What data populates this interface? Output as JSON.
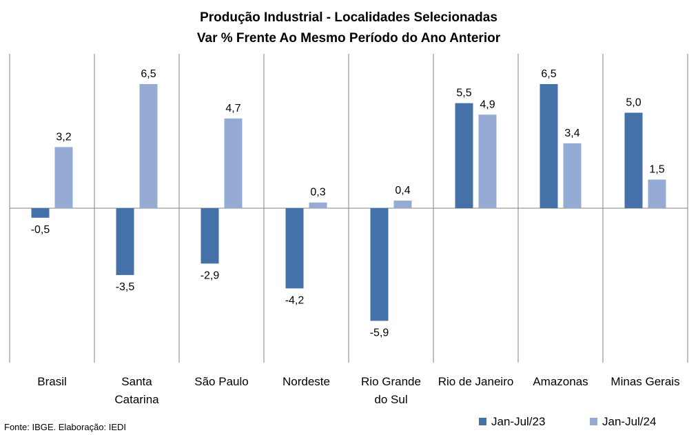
{
  "source": "Fonte: IBGE. Elaboração: IEDI",
  "chart_data": {
    "type": "bar",
    "title_lines": [
      "Produção Industrial - Localidades Selecionadas",
      "Var % Frente Ao Mesmo Período do Ano Anterior"
    ],
    "categories": [
      [
        "Brasil"
      ],
      [
        "Santa",
        "Catarina"
      ],
      [
        "São Paulo"
      ],
      [
        "Nordeste"
      ],
      [
        "Rio Grande",
        "do Sul"
      ],
      [
        "Rio de Janeiro"
      ],
      [
        "Amazonas"
      ],
      [
        "Minas Gerais"
      ]
    ],
    "series": [
      {
        "name": "Jan-Jul/23",
        "color": "#4472a8",
        "values": [
          -0.5,
          -3.5,
          -2.9,
          -4.2,
          -5.9,
          5.5,
          6.5,
          5.0
        ],
        "labels": [
          "-0,5",
          "-3,5",
          "-2,9",
          "-4,2",
          "-5,9",
          "5,5",
          "6,5",
          "5,0"
        ]
      },
      {
        "name": "Jan-Jul/24",
        "color": "#95abd3",
        "values": [
          3.2,
          6.5,
          4.7,
          0.3,
          0.4,
          4.9,
          3.4,
          1.5
        ],
        "labels": [
          "3,2",
          "6,5",
          "4,7",
          "0,3",
          "0,4",
          "4,9",
          "3,4",
          "1,5"
        ]
      }
    ],
    "xlabel": "",
    "ylabel": "",
    "ylim": [
      -8,
      8
    ],
    "grid": false,
    "legend_position": "bottom-right"
  }
}
